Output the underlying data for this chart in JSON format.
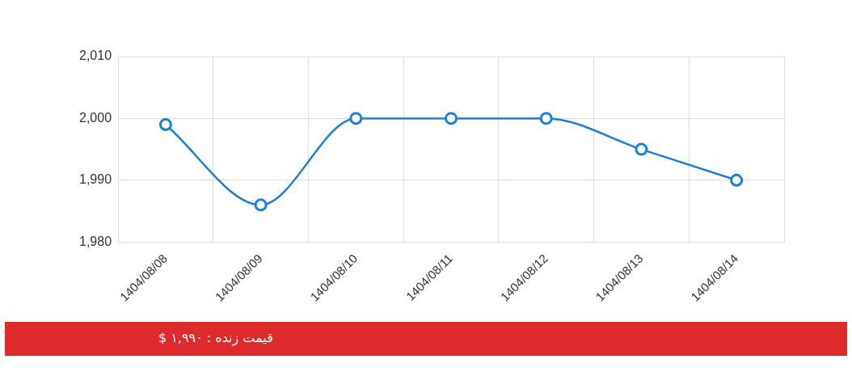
{
  "chart_data": {
    "type": "line",
    "categories": [
      "1404/08/08",
      "1404/08/09",
      "1404/08/10",
      "1404/08/11",
      "1404/08/12",
      "1404/08/13",
      "1404/08/14"
    ],
    "series": [
      {
        "color": "#1a7fd6",
        "values": [
          1999,
          1986,
          2000,
          2000,
          2000,
          1995,
          1990
        ]
      }
    ],
    "ylim": [
      1980,
      2010
    ],
    "yticks": [
      {
        "value": 1980,
        "label": "1,980"
      },
      {
        "value": 1990,
        "label": "1,990"
      },
      {
        "value": 2000,
        "label": "2,000"
      },
      {
        "value": 2010,
        "label": "2,010"
      }
    ],
    "grid": true,
    "legend": false,
    "marker": "circle",
    "line_style": "solid",
    "annotations": [
      "قیمت زنده : ۱,۹۹۰ $"
    ]
  }
}
